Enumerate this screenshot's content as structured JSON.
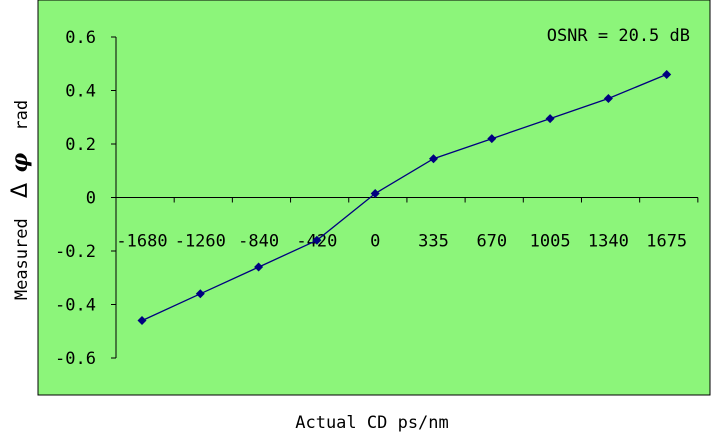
{
  "colors": {
    "plot_background": "#8cf57a",
    "series_line": "#000080",
    "marker": "#000080",
    "axis": "#000000"
  },
  "chart_data": {
    "type": "line",
    "x": [
      -1680,
      -1260,
      -840,
      -420,
      0,
      335,
      670,
      1005,
      1340,
      1675
    ],
    "series": [
      {
        "values": [
          -0.46,
          -0.36,
          -0.26,
          -0.16,
          0.015,
          0.145,
          0.22,
          0.295,
          0.37,
          0.46
        ]
      }
    ],
    "x_tick_labels": [
      "-1680",
      "-1260",
      "-840",
      "-420",
      "0",
      "335",
      "670",
      "1005",
      "1340",
      "1675"
    ],
    "y_ticks": [
      0.6,
      0.4,
      0.2,
      0,
      -0.2,
      -0.4,
      -0.6
    ],
    "y_tick_labels": [
      "0.6",
      "0.4",
      "0.2",
      "0",
      "-0.2",
      "-0.4",
      "-0.6"
    ],
    "ylim": [
      -0.6,
      0.6
    ],
    "xlabel": "Actual CD  ps/nm",
    "ylabel_prefix": "Measured",
    "ylabel_delta": "Δ",
    "ylabel_phi": "φ",
    "ylabel_suffix": "rad",
    "annotation": "OSNR = 20.5 dB",
    "grid": false,
    "marker": "diamond"
  }
}
